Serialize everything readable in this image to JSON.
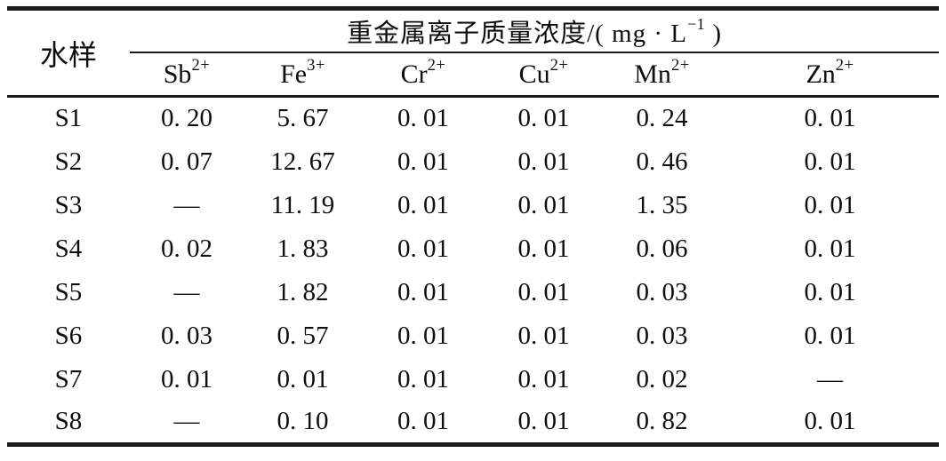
{
  "page": {
    "background_color": "#ffffff",
    "text_color": "#0e0e0e",
    "rule_color": "#1b1b1b"
  },
  "table": {
    "corner_header": "水样",
    "group_header": {
      "prefix": "重金属离子质量浓度/( mg · L",
      "superscript": "−1",
      "suffix": " )"
    },
    "ion_columns": [
      {
        "symbol": "Sb",
        "charge": "2+"
      },
      {
        "symbol": "Fe",
        "charge": "3+"
      },
      {
        "symbol": "Cr",
        "charge": "2+"
      },
      {
        "symbol": "Cu",
        "charge": "2+"
      },
      {
        "symbol": "Mn",
        "charge": "2+"
      },
      {
        "symbol": "Zn",
        "charge": "2+"
      }
    ],
    "rows": [
      {
        "sample": "S1",
        "values": [
          "0. 20",
          "5. 67",
          "0. 01",
          "0. 01",
          "0. 24",
          "0. 01"
        ]
      },
      {
        "sample": "S2",
        "values": [
          "0. 07",
          "12. 67",
          "0. 01",
          "0. 01",
          "0. 46",
          "0. 01"
        ]
      },
      {
        "sample": "S3",
        "values": [
          "—",
          "11. 19",
          "0. 01",
          "0. 01",
          "1. 35",
          "0. 01"
        ]
      },
      {
        "sample": "S4",
        "values": [
          "0. 02",
          "1. 83",
          "0. 01",
          "0. 01",
          "0. 06",
          "0. 01"
        ]
      },
      {
        "sample": "S5",
        "values": [
          "—",
          "1. 82",
          "0. 01",
          "0. 01",
          "0. 03",
          "0. 01"
        ]
      },
      {
        "sample": "S6",
        "values": [
          "0. 03",
          "0. 57",
          "0. 01",
          "0. 01",
          "0. 03",
          "0. 01"
        ]
      },
      {
        "sample": "S7",
        "values": [
          "0. 01",
          "0. 01",
          "0. 01",
          "0. 01",
          "0. 02",
          "—"
        ]
      },
      {
        "sample": "S8",
        "values": [
          "—",
          "0. 10",
          "0. 01",
          "0. 01",
          "0. 82",
          "0. 01"
        ]
      }
    ]
  }
}
